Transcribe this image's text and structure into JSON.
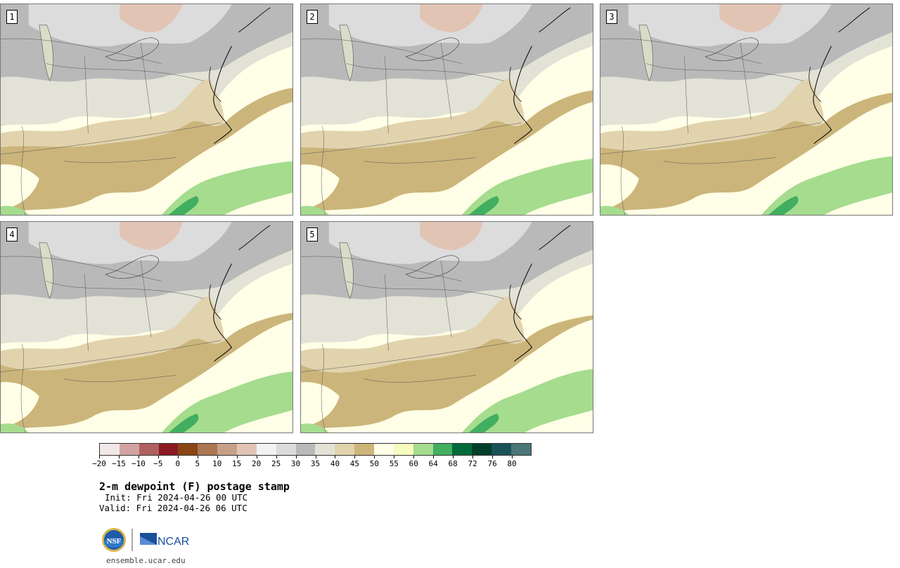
{
  "figure": {
    "title": "2-m dewpoint (F) postage stamp",
    "init": "Init: Fri 2024-04-26 00 UTC",
    "valid": "Valid: Fri 2024-04-26 06 UTC",
    "site": "ensemble.ucar.edu",
    "logo_text": "NCAR"
  },
  "members": [
    {
      "label": "1"
    },
    {
      "label": "2"
    },
    {
      "label": "3"
    },
    {
      "label": "4"
    },
    {
      "label": "5"
    }
  ],
  "colorbar": {
    "colors": [
      "#f3e8e8",
      "#d3a3a3",
      "#b06060",
      "#8b1a22",
      "#8a4513",
      "#ac7650",
      "#c8a088",
      "#e2c4b4",
      "#f2f2f2",
      "#dcdcdc",
      "#b9b9b9",
      "#e2e2d6",
      "#e1d3ad",
      "#cbb57a",
      "#fffee6",
      "#f6fbbf",
      "#a5dc8e",
      "#41ae60",
      "#006a3a",
      "#00402a",
      "#1a5258",
      "#4a7677"
    ],
    "ticks": [
      "−20",
      "−15",
      "−10",
      "−5",
      "0",
      "5",
      "10",
      "15",
      "20",
      "25",
      "30",
      "35",
      "40",
      "45",
      "50",
      "55",
      "60",
      "64",
      "68",
      "72",
      "76",
      "80"
    ]
  }
}
